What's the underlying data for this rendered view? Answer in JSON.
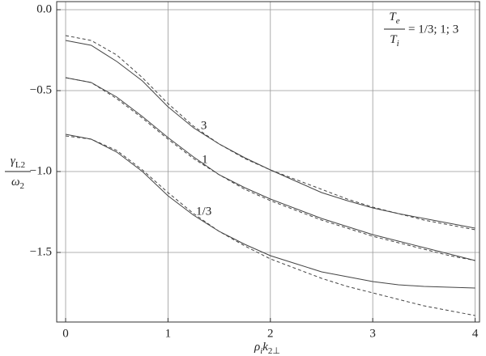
{
  "chart_data": {
    "type": "line",
    "ylabel": {
      "num": "γ",
      "num_sub": "L2",
      "den": "ω",
      "den_sub": "2"
    },
    "xlabel": {
      "a": "ρ",
      "a_sub": "i",
      "b": "k",
      "b_sub": "2⊥"
    },
    "annotation": {
      "num": "T",
      "num_sub": "e",
      "den": "T",
      "den_sub": "i",
      "text": "= 1/3; 1; 3"
    },
    "curve_labels": [
      "3",
      "1",
      "1/3"
    ],
    "x": [
      0,
      0.25,
      0.5,
      0.75,
      1,
      1.25,
      1.5,
      1.75,
      2,
      2.25,
      2.5,
      2.75,
      3,
      3.25,
      3.5,
      3.75,
      4
    ],
    "series": [
      {
        "color": "#444",
        "dashed": false,
        "values": [
          -0.19,
          -0.22,
          -0.32,
          -0.44,
          -0.6,
          -0.73,
          -0.83,
          -0.915,
          -0.99,
          -1.06,
          -1.13,
          -1.18,
          -1.225,
          -1.26,
          -1.29,
          -1.32,
          -1.35
        ]
      },
      {
        "color": "#444",
        "dashed": true,
        "values": [
          -0.16,
          -0.19,
          -0.28,
          -0.42,
          -0.58,
          -0.72,
          -0.83,
          -0.92,
          -0.99,
          -1.05,
          -1.11,
          -1.17,
          -1.22,
          -1.26,
          -1.3,
          -1.33,
          -1.36
        ]
      },
      {
        "color": "#444",
        "dashed": false,
        "values": [
          -0.42,
          -0.45,
          -0.54,
          -0.66,
          -0.79,
          -0.91,
          -1.02,
          -1.1,
          -1.17,
          -1.23,
          -1.29,
          -1.34,
          -1.39,
          -1.43,
          -1.47,
          -1.51,
          -1.55
        ]
      },
      {
        "color": "#444",
        "dashed": true,
        "values": [
          -0.42,
          -0.45,
          -0.55,
          -0.67,
          -0.8,
          -0.92,
          -1.02,
          -1.11,
          -1.18,
          -1.24,
          -1.3,
          -1.35,
          -1.4,
          -1.44,
          -1.48,
          -1.52,
          -1.55
        ]
      },
      {
        "color": "#444",
        "dashed": false,
        "values": [
          -0.77,
          -0.8,
          -0.88,
          -1.0,
          -1.15,
          -1.27,
          -1.37,
          -1.45,
          -1.52,
          -1.57,
          -1.62,
          -1.65,
          -1.68,
          -1.7,
          -1.71,
          -1.715,
          -1.72
        ]
      },
      {
        "color": "#444",
        "dashed": true,
        "values": [
          -0.78,
          -0.8,
          -0.87,
          -0.99,
          -1.13,
          -1.26,
          -1.37,
          -1.46,
          -1.54,
          -1.6,
          -1.66,
          -1.71,
          -1.75,
          -1.79,
          -1.83,
          -1.86,
          -1.89
        ]
      }
    ],
    "xlim": [
      -0.087,
      4.043
    ],
    "ylim": [
      -1.93,
      0.05
    ],
    "xticks": [
      0,
      1,
      2,
      3,
      4
    ],
    "yticks": [
      {
        "value": -1.5,
        "label": "−1.5"
      },
      {
        "value": -1.0,
        "label": "−1.0"
      },
      {
        "value": -0.5,
        "label": "−0.5"
      },
      {
        "value": 0,
        "label": "0.0"
      }
    ],
    "grid": true
  }
}
